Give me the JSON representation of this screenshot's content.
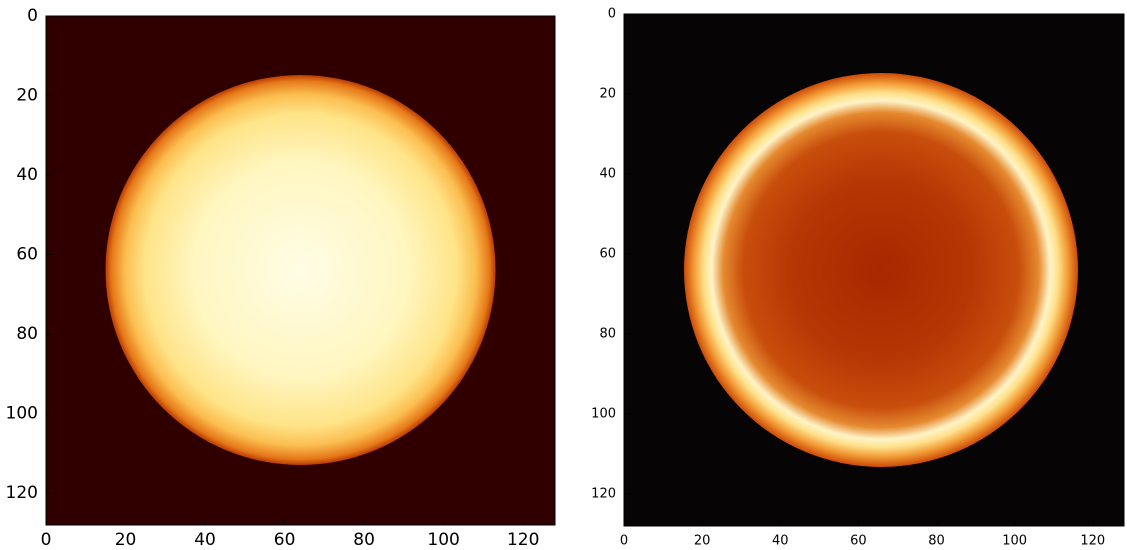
{
  "chart_data": [
    {
      "type": "image",
      "xlim": [
        0,
        128
      ],
      "ylim": [
        128,
        0
      ],
      "xticks": [
        0,
        20,
        40,
        60,
        80,
        100,
        120
      ],
      "yticks": [
        0,
        20,
        40,
        60,
        80,
        100,
        120
      ]
    },
    {
      "type": "image",
      "xlim": [
        0,
        128
      ],
      "ylim": [
        128,
        0
      ],
      "xticks": [
        0,
        20,
        40,
        60,
        80,
        100,
        120
      ],
      "yticks": [
        0,
        20,
        40,
        60,
        80,
        100,
        120
      ]
    }
  ]
}
